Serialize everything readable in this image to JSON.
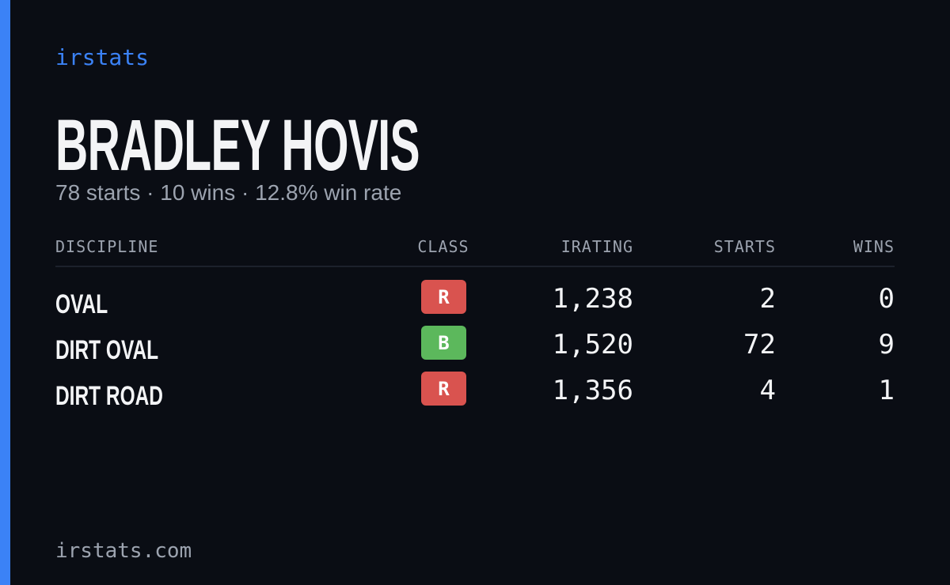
{
  "brand": "irstats",
  "header": {
    "title": "BRADLEY HOVIS",
    "subtitle": "78 starts · 10 wins · 12.8% win rate"
  },
  "table": {
    "columns": [
      "DISCIPLINE",
      "CLASS",
      "IRATING",
      "STARTS",
      "WINS"
    ],
    "rows": [
      [
        "OVAL",
        "R",
        "1,238",
        "2",
        "0"
      ],
      [
        "DIRT OVAL",
        "B",
        "1,520",
        "72",
        "9"
      ],
      [
        "DIRT ROAD",
        "R",
        "1,356",
        "4",
        "1"
      ]
    ],
    "class_colors": [
      "#d9534f",
      "#5cb85c",
      "#d9534f"
    ]
  },
  "footer": {
    "url": "irstats.com"
  }
}
